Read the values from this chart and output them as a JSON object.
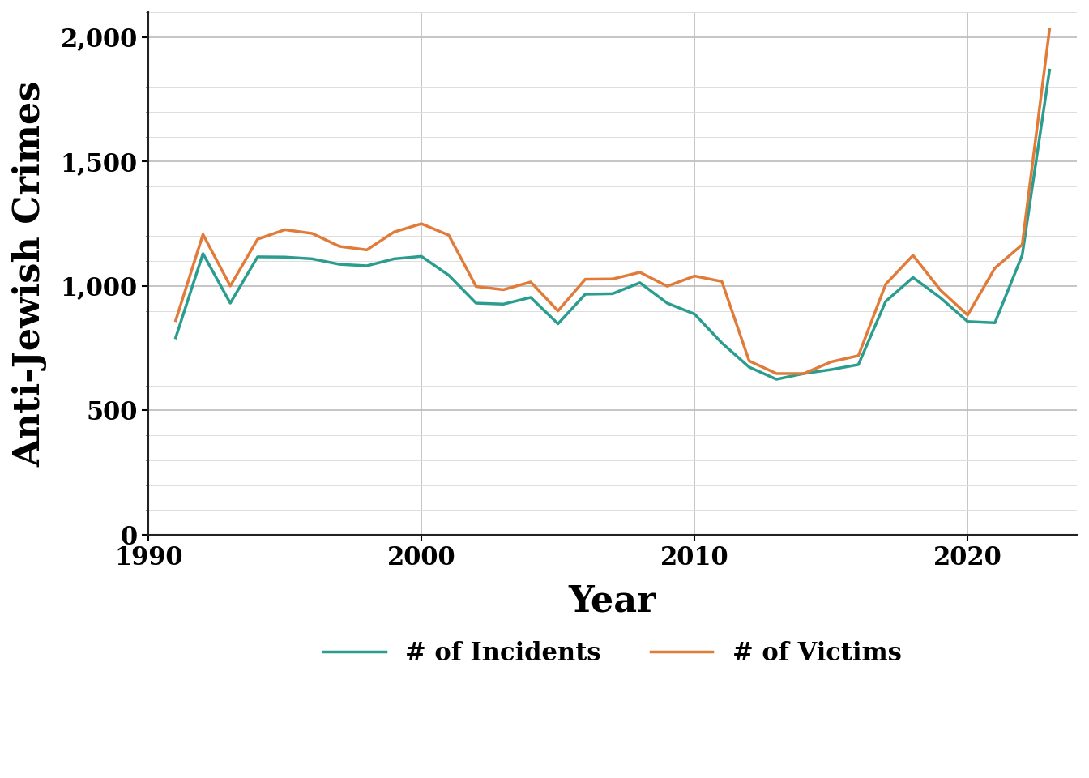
{
  "years": [
    1991,
    1992,
    1993,
    1994,
    1995,
    1996,
    1997,
    1998,
    1999,
    2000,
    2001,
    2002,
    2003,
    2004,
    2005,
    2006,
    2007,
    2008,
    2009,
    2010,
    2011,
    2012,
    2013,
    2014,
    2015,
    2016,
    2017,
    2018,
    2019,
    2020,
    2021,
    2022,
    2023
  ],
  "incidents": [
    792,
    1130,
    931,
    1117,
    1116,
    1109,
    1087,
    1081,
    1109,
    1119,
    1043,
    931,
    927,
    954,
    848,
    967,
    969,
    1013,
    931,
    887,
    771,
    674,
    625,
    648,
    664,
    684,
    938,
    1034,
    953,
    857,
    852,
    1124,
    1867
  ],
  "victims": [
    861,
    1207,
    1000,
    1188,
    1226,
    1211,
    1159,
    1145,
    1217,
    1250,
    1204,
    998,
    985,
    1016,
    900,
    1027,
    1028,
    1055,
    999,
    1040,
    1018,
    699,
    648,
    648,
    695,
    720,
    1007,
    1123,
    984,
    883,
    1072,
    1166,
    2031
  ],
  "incidents_color": "#2a9d8f",
  "victims_color": "#e07b39",
  "incidents_label": "# of Incidents",
  "victims_label": "# of Victims",
  "xlabel": "Year",
  "ylabel": "Anti-Jewish Crimes",
  "xlim": [
    1990,
    2024
  ],
  "ylim": [
    0,
    2100
  ],
  "yticks": [
    0,
    500,
    1000,
    1500,
    2000
  ],
  "xticks": [
    1990,
    2000,
    2010,
    2020
  ],
  "major_grid_color": "#bbbbbb",
  "minor_grid_color": "#dddddd",
  "background_color": "#ffffff",
  "line_width": 2.5,
  "ylabel_fontsize": 32,
  "xlabel_fontsize": 32,
  "tick_fontsize": 22,
  "legend_fontsize": 22
}
